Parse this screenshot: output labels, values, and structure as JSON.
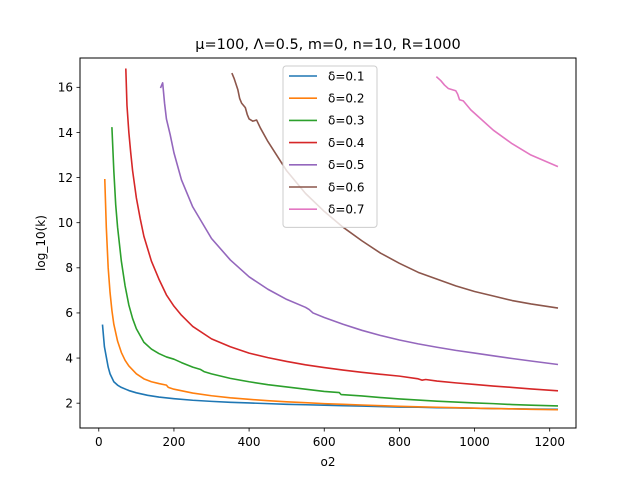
{
  "chart_data": {
    "type": "line",
    "title": "μ=100, Λ=0.5, m=0, n=10, R=1000",
    "xlabel": "o2",
    "ylabel": "log_10(k)",
    "xlim": [
      -50,
      1270
    ],
    "ylim": [
      0.9,
      17.3
    ],
    "xticks": [
      0,
      200,
      400,
      600,
      800,
      1000,
      1200
    ],
    "yticks": [
      2,
      4,
      6,
      8,
      10,
      12,
      14,
      16
    ],
    "grid": false,
    "legend_position": "top-center",
    "series": [
      {
        "name": "δ=0.1",
        "color": "#1f77b4",
        "x": [
          10,
          15,
          20,
          25,
          30,
          40,
          50,
          60,
          80,
          100,
          130,
          160,
          200,
          250,
          300,
          350,
          400,
          450,
          500,
          550,
          600,
          650,
          700,
          750,
          800,
          850,
          900,
          950,
          1000,
          1050,
          1100,
          1150,
          1220
        ],
        "y": [
          5.45,
          4.5,
          4.05,
          3.6,
          3.3,
          2.95,
          2.8,
          2.7,
          2.56,
          2.46,
          2.35,
          2.27,
          2.2,
          2.13,
          2.08,
          2.04,
          2.01,
          1.98,
          1.95,
          1.93,
          1.91,
          1.89,
          1.87,
          1.85,
          1.83,
          1.82,
          1.8,
          1.79,
          1.78,
          1.76,
          1.75,
          1.74,
          1.73
        ]
      },
      {
        "name": "δ=0.2",
        "color": "#ff7f0e",
        "x": [
          16,
          20,
          25,
          30,
          35,
          40,
          50,
          60,
          70,
          80,
          100,
          120,
          140,
          160,
          180,
          185,
          200,
          250,
          300,
          350,
          400,
          450,
          500,
          550,
          600,
          650,
          700,
          750,
          800,
          850,
          900,
          950,
          1000,
          1050,
          1100,
          1150,
          1220
        ],
        "y": [
          11.9,
          9.8,
          8.0,
          6.9,
          6.1,
          5.5,
          4.75,
          4.25,
          3.9,
          3.65,
          3.3,
          3.08,
          2.95,
          2.87,
          2.8,
          2.7,
          2.62,
          2.45,
          2.33,
          2.24,
          2.17,
          2.11,
          2.06,
          2.02,
          1.98,
          1.95,
          1.92,
          1.89,
          1.86,
          1.84,
          1.82,
          1.8,
          1.78,
          1.76,
          1.75,
          1.73,
          1.71
        ]
      },
      {
        "name": "δ=0.3",
        "color": "#2ca02c",
        "x": [
          35,
          40,
          45,
          50,
          60,
          70,
          80,
          90,
          100,
          120,
          140,
          160,
          180,
          200,
          220,
          250,
          270,
          280,
          300,
          350,
          400,
          450,
          500,
          550,
          600,
          640,
          645,
          700,
          750,
          800,
          850,
          900,
          950,
          1000,
          1050,
          1100,
          1150,
          1220
        ],
        "y": [
          14.2,
          12.3,
          10.8,
          9.8,
          8.3,
          7.2,
          6.35,
          5.75,
          5.3,
          4.7,
          4.4,
          4.2,
          4.05,
          3.95,
          3.8,
          3.6,
          3.5,
          3.4,
          3.3,
          3.1,
          2.95,
          2.82,
          2.72,
          2.62,
          2.52,
          2.47,
          2.38,
          2.32,
          2.25,
          2.19,
          2.14,
          2.09,
          2.05,
          2.01,
          1.98,
          1.94,
          1.91,
          1.88
        ]
      },
      {
        "name": "δ=0.4",
        "color": "#d62728",
        "x": [
          72,
          75,
          80,
          85,
          90,
          100,
          110,
          120,
          140,
          160,
          180,
          200,
          220,
          250,
          300,
          350,
          400,
          450,
          500,
          550,
          600,
          650,
          700,
          750,
          800,
          850,
          860,
          870,
          900,
          950,
          1000,
          1050,
          1100,
          1150,
          1220
        ],
        "y": [
          16.8,
          15.2,
          14.0,
          13.1,
          12.3,
          11.1,
          10.2,
          9.4,
          8.3,
          7.5,
          6.8,
          6.3,
          5.9,
          5.4,
          4.85,
          4.5,
          4.22,
          4.02,
          3.85,
          3.7,
          3.58,
          3.47,
          3.37,
          3.28,
          3.2,
          3.08,
          3.02,
          3.05,
          2.98,
          2.9,
          2.83,
          2.76,
          2.7,
          2.63,
          2.55
        ]
      },
      {
        "name": "δ=0.5",
        "color": "#9467bd",
        "x": [
          165,
          170,
          175,
          180,
          190,
          200,
          220,
          250,
          300,
          350,
          400,
          450,
          500,
          550,
          560,
          570,
          600,
          650,
          700,
          750,
          800,
          850,
          900,
          950,
          1000,
          1050,
          1100,
          1150,
          1220
        ],
        "y": [
          16.0,
          16.2,
          15.3,
          14.6,
          13.9,
          13.1,
          11.9,
          10.7,
          9.3,
          8.35,
          7.6,
          7.05,
          6.6,
          6.25,
          6.15,
          6.0,
          5.8,
          5.5,
          5.23,
          5.0,
          4.8,
          4.63,
          4.48,
          4.34,
          4.22,
          4.1,
          3.98,
          3.87,
          3.72
        ]
      },
      {
        "name": "δ=0.6",
        "color": "#8c564b",
        "x": [
          355,
          360,
          370,
          375,
          380,
          390,
          395,
          400,
          410,
          420,
          430,
          450,
          500,
          550,
          600,
          650,
          700,
          750,
          800,
          850,
          900,
          950,
          1000,
          1050,
          1100,
          1150,
          1220
        ],
        "y": [
          16.6,
          16.4,
          15.9,
          15.5,
          15.3,
          15.1,
          14.8,
          14.6,
          14.5,
          14.55,
          14.2,
          13.6,
          12.3,
          11.3,
          10.5,
          9.8,
          9.2,
          8.65,
          8.2,
          7.8,
          7.5,
          7.2,
          6.95,
          6.75,
          6.55,
          6.4,
          6.22
        ]
      },
      {
        "name": "δ=0.7",
        "color": "#e377c2",
        "x": [
          900,
          910,
          920,
          930,
          940,
          950,
          955,
          960,
          970,
          980,
          990,
          1000,
          1050,
          1100,
          1150,
          1220
        ],
        "y": [
          16.45,
          16.3,
          16.1,
          15.95,
          15.9,
          15.85,
          15.7,
          15.45,
          15.4,
          15.2,
          15.0,
          14.85,
          14.1,
          13.5,
          13.0,
          12.5
        ]
      }
    ]
  }
}
